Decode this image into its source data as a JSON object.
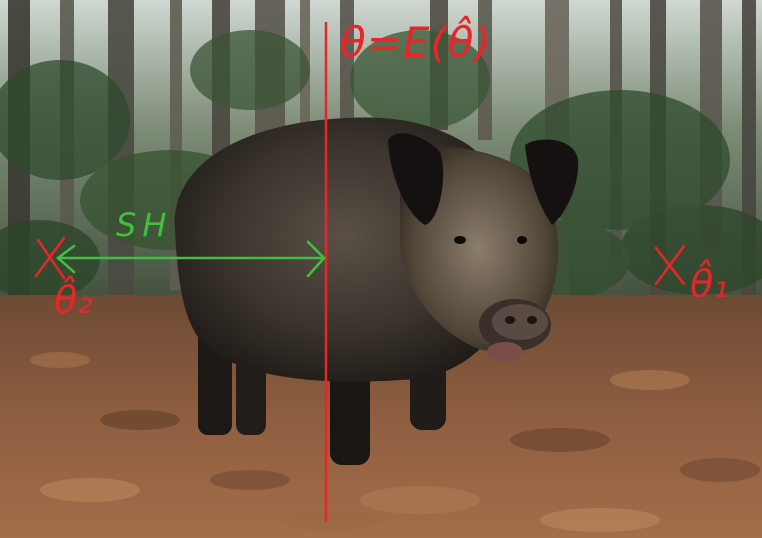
{
  "annotations": {
    "top_formula": "θ=E(θ̂)",
    "sh_label": "SH",
    "left_cross": "X",
    "left_theta": "θ̂₂",
    "right_cross": "X",
    "right_theta": "θ̂₁"
  },
  "colors": {
    "annotation_red": "#e8262a",
    "annotation_green": "#3ec23e",
    "forest_dark": "#2c3a2a",
    "leaf_litter": "#8a5a3c",
    "boar_fur": "#3b342e"
  }
}
